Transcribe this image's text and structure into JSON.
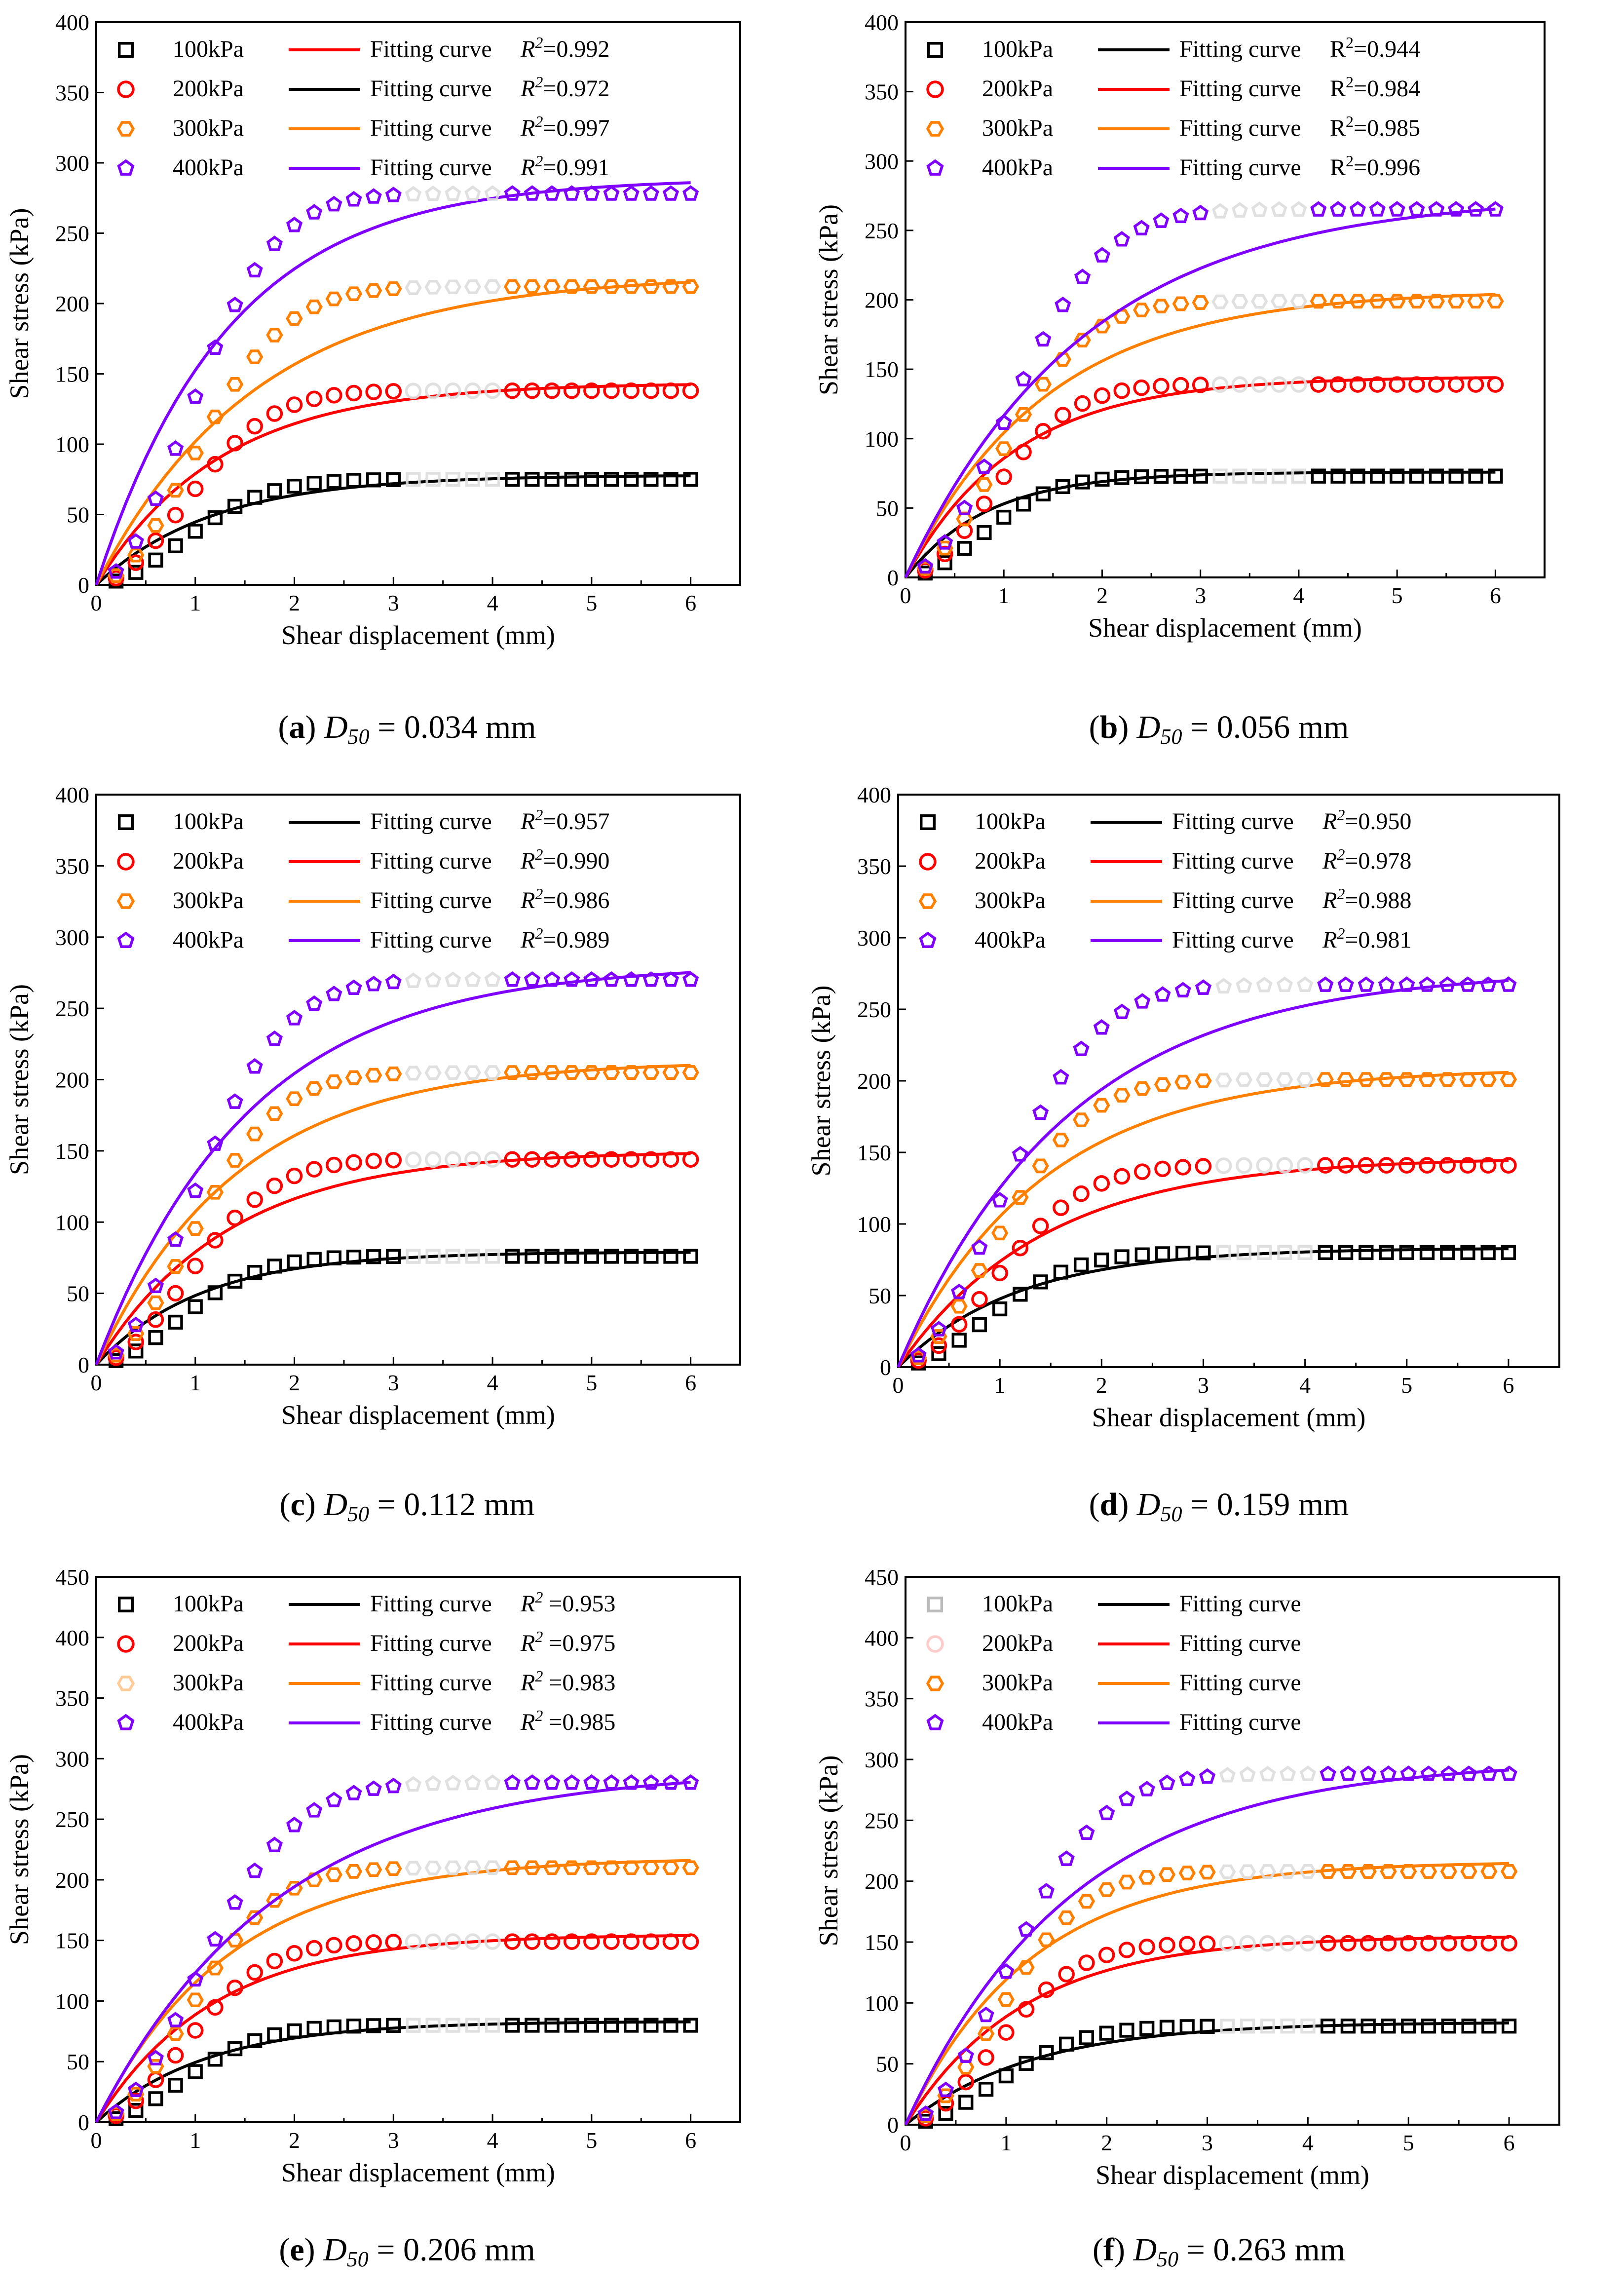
{
  "figure": {
    "xlabel": "Shear displacement (mm)",
    "ylabel": "Shear stress (kPa)"
  },
  "chart_data": [
    {
      "type": "scatter",
      "panel": "a",
      "caption": {
        "letter": "a",
        "symbol": "D",
        "subscript": "50",
        "value": "= 0.034 mm"
      },
      "xlabel": "Shear displacement (mm)",
      "ylabel": "Shear stress (kPa)",
      "xlim": [
        0,
        6.5
      ],
      "ylim": [
        0,
        400
      ],
      "xticks": [
        0,
        1,
        2,
        3,
        4,
        5,
        6
      ],
      "yticks": [
        0,
        50,
        100,
        150,
        200,
        250,
        300,
        350,
        400
      ],
      "legend": {
        "placement": "top-left",
        "italic_r": true,
        "entries": [
          {
            "series": "100kPa",
            "curve_label": "Fitting curve",
            "r2_label": "R",
            "r2_sup": "2",
            "r2_value": "=0.992",
            "marker_color": "#000000",
            "curve_color": "#ff0000"
          },
          {
            "series": "200kPa",
            "curve_label": "Fitting curve",
            "r2_label": "R",
            "r2_sup": "2",
            "r2_value": "=0.972",
            "marker_color": "#ff0000",
            "curve_color": "#000000"
          },
          {
            "series": "300kPa",
            "curve_label": "Fitting curve",
            "r2_label": "R",
            "r2_sup": "2",
            "r2_value": "=0.997",
            "marker_color": "#ff7f00",
            "curve_color": "#ff7f00"
          },
          {
            "series": "400kPa",
            "curve_label": "Fitting curve",
            "r2_label": "R",
            "r2_sup": "2",
            "r2_value": "=0.991",
            "marker_color": "#7f00ff",
            "curve_color": "#7f00ff"
          }
        ]
      },
      "series": [
        {
          "name": "100kPa",
          "marker": "square",
          "color": "#000000",
          "peak": 75,
          "kfit": 0.85
        },
        {
          "name": "200kPa",
          "marker": "circle",
          "color": "#ff0000",
          "peak": 138,
          "kfit": 0.8
        },
        {
          "name": "300kPa",
          "marker": "hexagon",
          "color": "#ff7f00",
          "peak": 212,
          "kfit": 0.62
        },
        {
          "name": "400kPa",
          "marker": "pentagon",
          "color": "#7f00ff",
          "peak": 278,
          "kfit": 0.75
        }
      ]
    },
    {
      "type": "scatter",
      "panel": "b",
      "caption": {
        "letter": "b",
        "symbol": "D",
        "subscript": "50",
        "value": "= 0.056 mm"
      },
      "xlabel": "Shear displacement (mm)",
      "ylabel": "Shear stress (kPa)",
      "xlim": [
        0,
        6.5
      ],
      "ylim": [
        0,
        400
      ],
      "xticks": [
        0,
        1,
        2,
        3,
        4,
        5,
        6
      ],
      "yticks": [
        0,
        50,
        100,
        150,
        200,
        250,
        300,
        350,
        400
      ],
      "legend": {
        "placement": "top-left",
        "italic_r": false,
        "entries": [
          {
            "series": "100kPa",
            "curve_label": "Fitting curve",
            "r2_label": "R",
            "r2_sup": "2",
            "r2_value": "=0.944",
            "marker_color": "#000000",
            "curve_color": "#000000"
          },
          {
            "series": "200kPa",
            "curve_label": "Fitting curve",
            "r2_label": "R",
            "r2_sup": "2",
            "r2_value": "=0.984",
            "marker_color": "#ff0000",
            "curve_color": "#ff0000"
          },
          {
            "series": "300kPa",
            "curve_label": "Fitting curve",
            "r2_label": "R",
            "r2_sup": "2",
            "r2_value": "=0.985",
            "marker_color": "#ff7f00",
            "curve_color": "#ff7f00"
          },
          {
            "series": "400kPa",
            "curve_label": "Fitting curve",
            "r2_label": "R",
            "r2_sup": "2",
            "r2_value": "=0.996",
            "marker_color": "#7f00ff",
            "curve_color": "#7f00ff"
          }
        ]
      },
      "series": [
        {
          "name": "100kPa",
          "marker": "square",
          "color": "#000000",
          "peak": 73,
          "kfit": 1.2
        },
        {
          "name": "200kPa",
          "marker": "circle",
          "color": "#ff0000",
          "peak": 139,
          "kfit": 0.9
        },
        {
          "name": "300kPa",
          "marker": "hexagon",
          "color": "#ff7f00",
          "peak": 199,
          "kfit": 0.7
        },
        {
          "name": "400kPa",
          "marker": "pentagon",
          "color": "#7f00ff",
          "peak": 265,
          "kfit": 0.55
        }
      ]
    },
    {
      "type": "scatter",
      "panel": "c",
      "caption": {
        "letter": "c",
        "symbol": "D",
        "subscript": "50",
        "value": "= 0.112 mm"
      },
      "xlabel": "Shear displacement (mm)",
      "ylabel": "Shear stress (kPa)",
      "xlim": [
        0,
        6.5
      ],
      "ylim": [
        0,
        400
      ],
      "xticks": [
        0,
        1,
        2,
        3,
        4,
        5,
        6
      ],
      "yticks": [
        0,
        50,
        100,
        150,
        200,
        250,
        300,
        350,
        400
      ],
      "legend": {
        "placement": "top-left",
        "italic_r": true,
        "entries": [
          {
            "series": "100kPa",
            "curve_label": "Fitting curve",
            "r2_label": "R",
            "r2_sup": "2",
            "r2_value": "=0.957",
            "marker_color": "#000000",
            "curve_color": "#000000"
          },
          {
            "series": "200kPa",
            "curve_label": "Fitting curve",
            "r2_label": "R",
            "r2_sup": "2",
            "r2_value": "=0.990",
            "marker_color": "#ff0000",
            "curve_color": "#ff0000"
          },
          {
            "series": "300kPa",
            "curve_label": "Fitting curve",
            "r2_label": "R",
            "r2_sup": "2",
            "r2_value": "=0.986",
            "marker_color": "#ff7f00",
            "curve_color": "#ff7f00"
          },
          {
            "series": "400kPa",
            "curve_label": "Fitting curve",
            "r2_label": "R",
            "r2_sup": "2",
            "r2_value": "=0.989",
            "marker_color": "#7f00ff",
            "curve_color": "#7f00ff"
          }
        ]
      },
      "series": [
        {
          "name": "100kPa",
          "marker": "square",
          "color": "#000000",
          "peak": 76,
          "kfit": 0.95
        },
        {
          "name": "200kPa",
          "marker": "circle",
          "color": "#ff0000",
          "peak": 144,
          "kfit": 0.75
        },
        {
          "name": "300kPa",
          "marker": "hexagon",
          "color": "#ff7f00",
          "peak": 205,
          "kfit": 0.7
        },
        {
          "name": "400kPa",
          "marker": "pentagon",
          "color": "#7f00ff",
          "peak": 270,
          "kfit": 0.65
        }
      ]
    },
    {
      "type": "scatter",
      "panel": "d",
      "caption": {
        "letter": "d",
        "symbol": "D",
        "subscript": "50",
        "value": "= 0.159 mm"
      },
      "xlabel": "Shear displacement (mm)",
      "ylabel": "Shear stress (kPa)",
      "xlim": [
        0,
        6.5
      ],
      "ylim": [
        0,
        400
      ],
      "xticks": [
        0,
        1,
        2,
        3,
        4,
        5,
        6
      ],
      "yticks": [
        0,
        50,
        100,
        150,
        200,
        250,
        300,
        350,
        400
      ],
      "legend": {
        "placement": "top-left",
        "italic_r": true,
        "entries": [
          {
            "series": "100kPa",
            "curve_label": "Fitting curve",
            "r2_label": "R",
            "r2_sup": "2",
            "r2_value": "=0.950",
            "marker_color": "#000000",
            "curve_color": "#000000"
          },
          {
            "series": "200kPa",
            "curve_label": "Fitting curve",
            "r2_label": "R",
            "r2_sup": "2",
            "r2_value": "=0.978",
            "marker_color": "#ff0000",
            "curve_color": "#ff0000"
          },
          {
            "series": "300kPa",
            "curve_label": "Fitting curve",
            "r2_label": "R",
            "r2_sup": "2",
            "r2_value": "=0.988",
            "marker_color": "#ff7f00",
            "curve_color": "#ff7f00"
          },
          {
            "series": "400kPa",
            "curve_label": "Fitting curve",
            "r2_label": "R",
            "r2_sup": "2",
            "r2_value": "=0.981",
            "marker_color": "#7f00ff",
            "curve_color": "#7f00ff"
          }
        ]
      },
      "series": [
        {
          "name": "100kPa",
          "marker": "square",
          "color": "#000000",
          "peak": 80,
          "kfit": 0.85
        },
        {
          "name": "200kPa",
          "marker": "circle",
          "color": "#ff0000",
          "peak": 141,
          "kfit": 0.7
        },
        {
          "name": "300kPa",
          "marker": "hexagon",
          "color": "#ff7f00",
          "peak": 201,
          "kfit": 0.7
        },
        {
          "name": "400kPa",
          "marker": "pentagon",
          "color": "#7f00ff",
          "peak": 267,
          "kfit": 0.6
        }
      ]
    },
    {
      "type": "scatter",
      "panel": "e",
      "caption": {
        "letter": "e",
        "symbol": "D",
        "subscript": "50",
        "value": "= 0.206 mm"
      },
      "xlabel": "Shear displacement (mm)",
      "ylabel": "Shear stress (kPa)",
      "xlim": [
        0,
        6.5
      ],
      "ylim": [
        0,
        450
      ],
      "xticks": [
        0,
        1,
        2,
        3,
        4,
        5,
        6
      ],
      "yticks": [
        0,
        50,
        100,
        150,
        200,
        250,
        300,
        350,
        400,
        450
      ],
      "legend": {
        "placement": "top-left",
        "italic_r": true,
        "entries": [
          {
            "series": "100kPa",
            "curve_label": "Fitting curve",
            "r2_label": "R",
            "r2_sup": "2",
            "r2_value": " =0.953",
            "marker_color": "#000000",
            "curve_color": "#000000"
          },
          {
            "series": "200kPa",
            "curve_label": "Fitting curve",
            "r2_label": "R",
            "r2_sup": "2",
            "r2_value": " =0.975",
            "marker_color": "#ff0000",
            "curve_color": "#ff0000"
          },
          {
            "series": "300kPa",
            "curve_label": "Fitting curve",
            "r2_label": "R",
            "r2_sup": "2",
            "r2_value": " =0.983",
            "marker_color": "#ffcc99",
            "curve_color": "#ff7f00"
          },
          {
            "series": "400kPa",
            "curve_label": "Fitting curve",
            "r2_label": "R",
            "r2_sup": "2",
            "r2_value": " =0.985",
            "marker_color": "#7f00ff",
            "curve_color": "#7f00ff"
          }
        ]
      },
      "series": [
        {
          "name": "100kPa",
          "marker": "square",
          "color": "#000000",
          "peak": 80,
          "kfit": 0.9
        },
        {
          "name": "200kPa",
          "marker": "circle",
          "color": "#ff0000",
          "peak": 149,
          "kfit": 0.85
        },
        {
          "name": "300kPa",
          "marker": "hexagon",
          "color": "#ff7f00",
          "peak": 210,
          "kfit": 0.75
        },
        {
          "name": "400kPa",
          "marker": "pentagon",
          "color": "#7f00ff",
          "peak": 280,
          "kfit": 0.55
        }
      ]
    },
    {
      "type": "scatter",
      "panel": "f",
      "caption": {
        "letter": "f",
        "symbol": "D",
        "subscript": "50",
        "value": "= 0.263 mm"
      },
      "xlabel": "Shear displacement (mm)",
      "ylabel": "Shear stress (kPa)",
      "xlim": [
        0,
        6.5
      ],
      "ylim": [
        0,
        450
      ],
      "xticks": [
        0,
        1,
        2,
        3,
        4,
        5,
        6
      ],
      "yticks": [
        0,
        50,
        100,
        150,
        200,
        250,
        300,
        350,
        400,
        450
      ],
      "legend": {
        "placement": "top-left",
        "italic_r": false,
        "entries": [
          {
            "series": "100kPa",
            "curve_label": "Fitting curve",
            "r2_label": "",
            "r2_sup": "",
            "r2_value": "",
            "marker_color": "#bbbbbb",
            "curve_color": "#000000"
          },
          {
            "series": "200kPa",
            "curve_label": "Fitting curve",
            "r2_label": "",
            "r2_sup": "",
            "r2_value": "",
            "marker_color": "#ffcccc",
            "curve_color": "#ff0000"
          },
          {
            "series": "300kPa",
            "curve_label": "Fitting curve",
            "r2_label": "",
            "r2_sup": "",
            "r2_value": "",
            "marker_color": "#ff7f00",
            "curve_color": "#ff7f00"
          },
          {
            "series": "400kPa",
            "curve_label": "Fitting curve",
            "r2_label": "",
            "r2_sup": "",
            "r2_value": "",
            "marker_color": "#7f00ff",
            "curve_color": "#7f00ff"
          }
        ]
      },
      "series": [
        {
          "name": "100kPa",
          "marker": "square",
          "color": "#000000",
          "peak": 81,
          "kfit": 0.8
        },
        {
          "name": "200kPa",
          "marker": "circle",
          "color": "#ff0000",
          "peak": 149,
          "kfit": 0.85
        },
        {
          "name": "300kPa",
          "marker": "hexagon",
          "color": "#ff7f00",
          "peak": 208,
          "kfit": 0.8
        },
        {
          "name": "400kPa",
          "marker": "pentagon",
          "color": "#7f00ff",
          "peak": 288,
          "kfit": 0.6
        }
      ]
    }
  ]
}
